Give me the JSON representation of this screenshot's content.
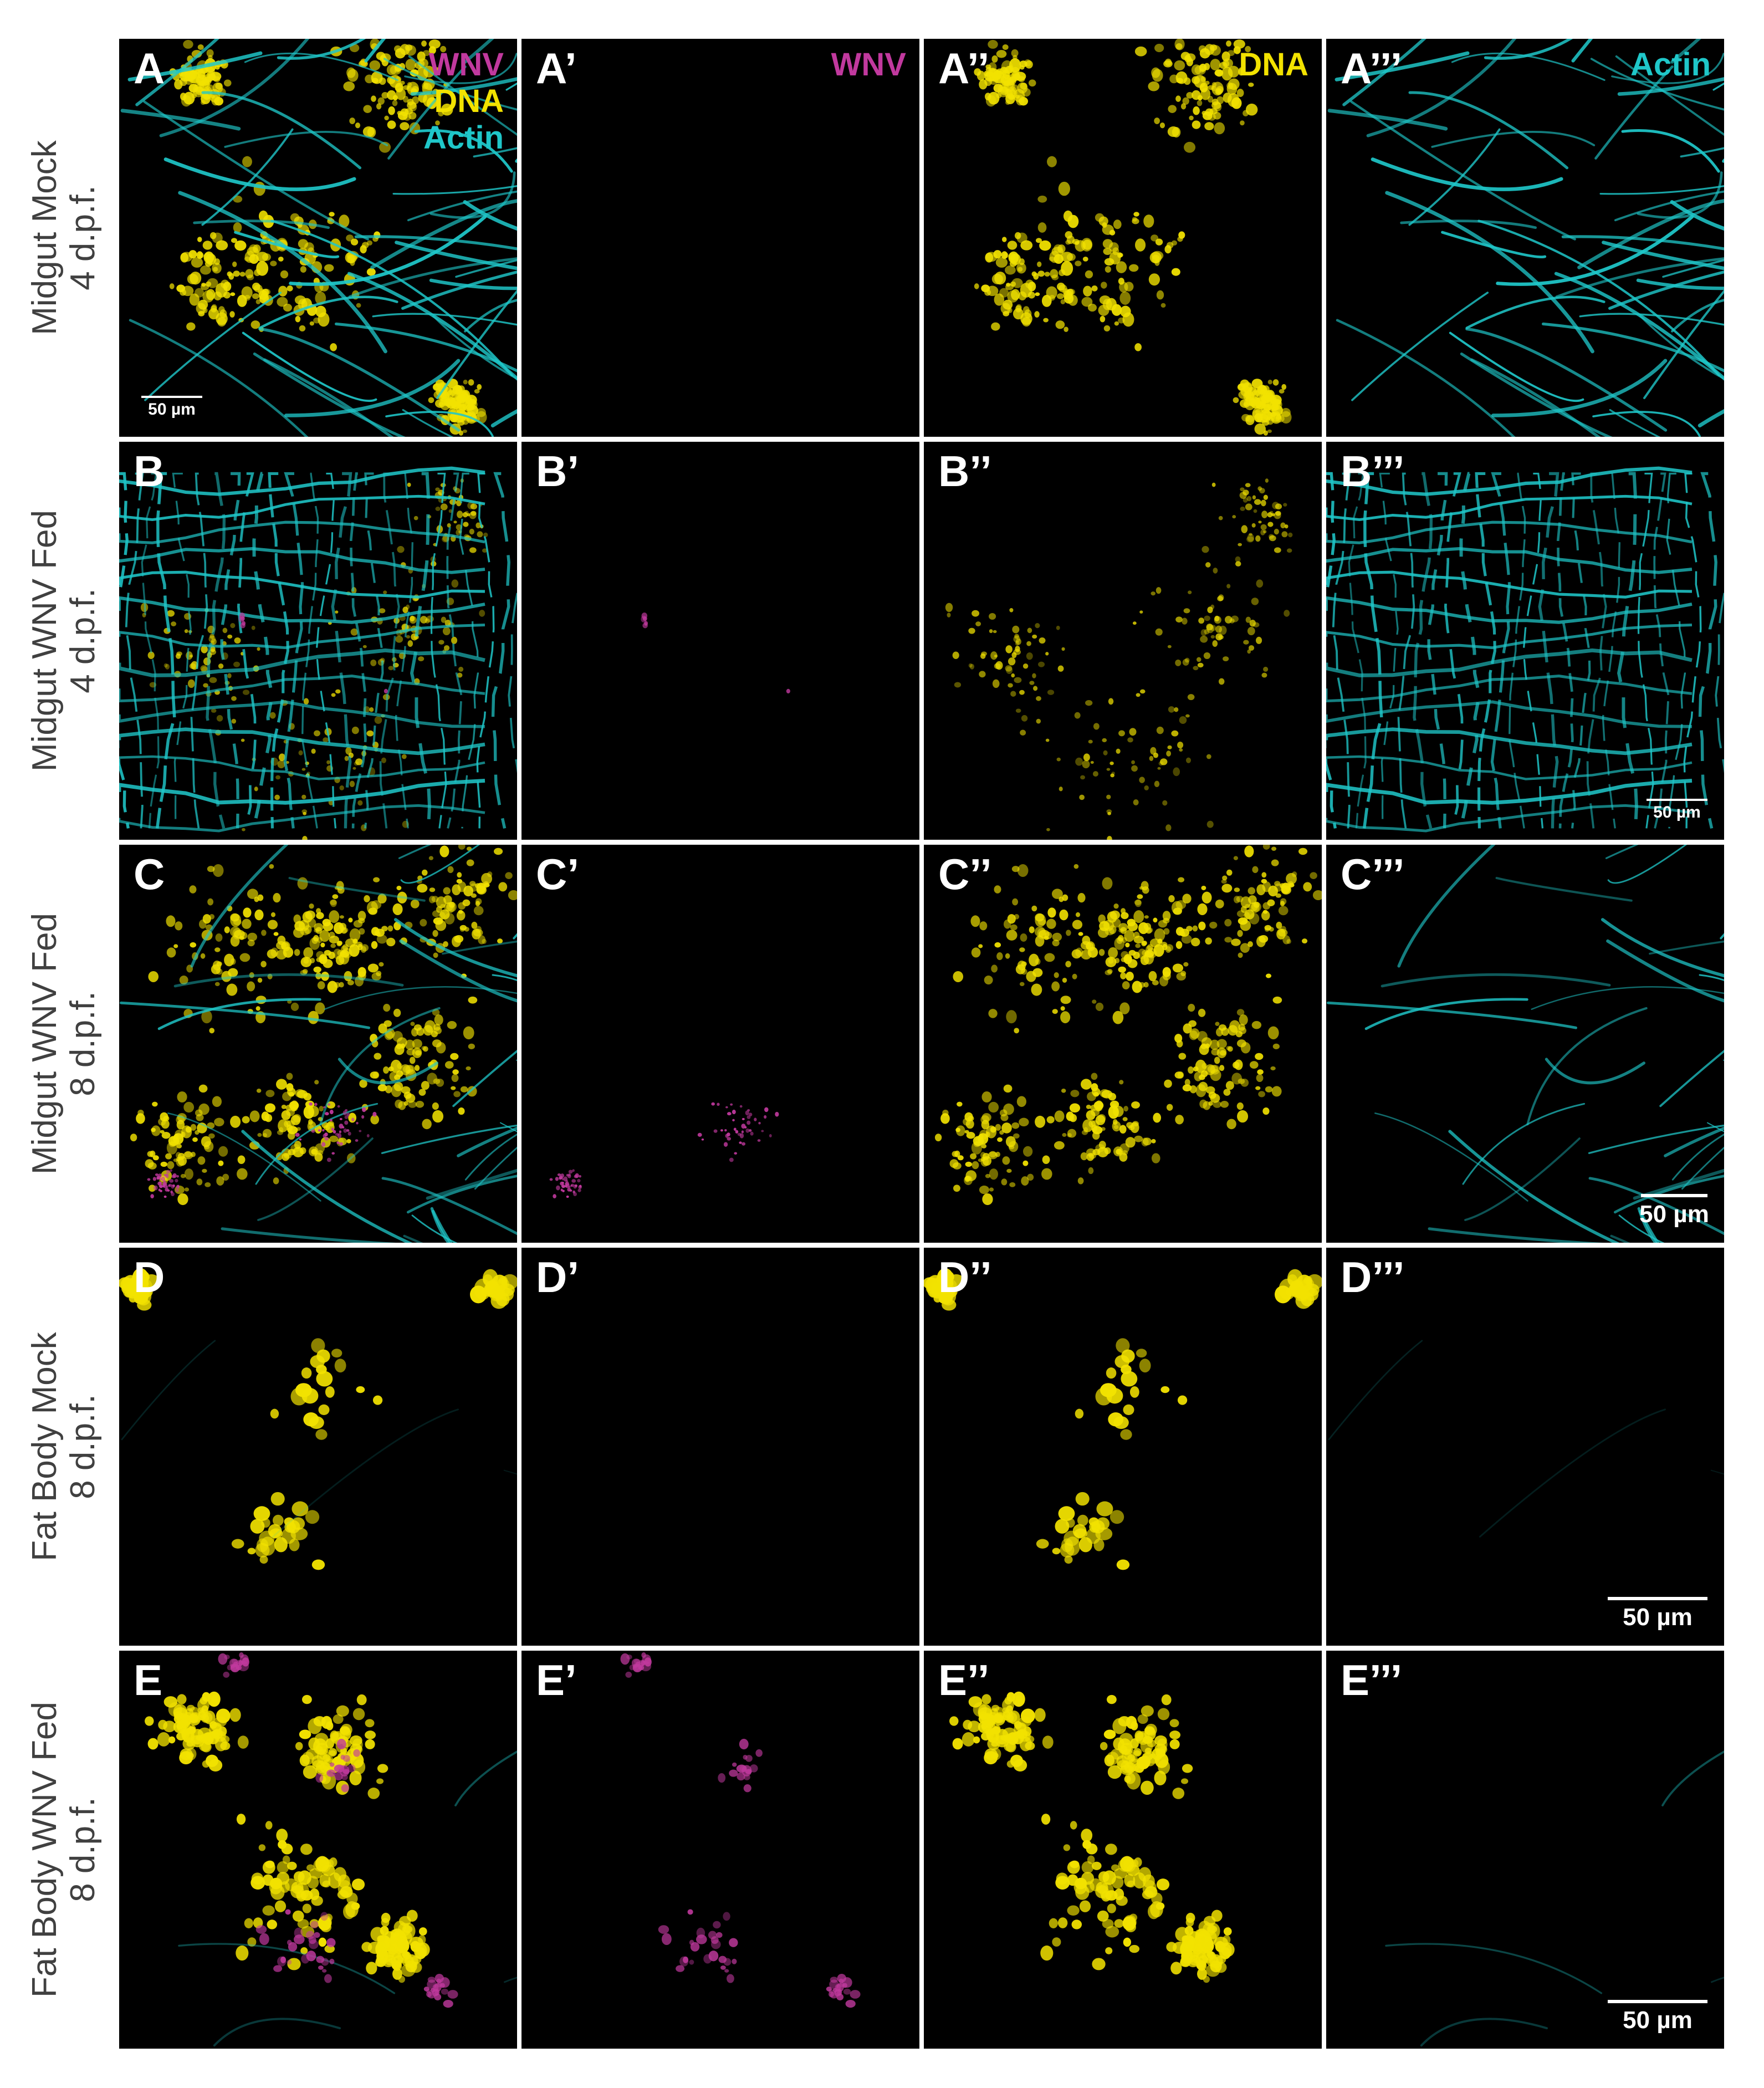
{
  "colors": {
    "wnv": "#c1399e",
    "dna": "#f2e200",
    "actin": "#1fc7c9",
    "background": "#000000",
    "divider": "#ffffff"
  },
  "rows": [
    {
      "label_line1": "Midgut Mock",
      "label_line2": "4 d.p.f.",
      "panels": [
        {
          "letter": "A",
          "legend": [
            "WNV",
            "DNA",
            "Actin"
          ],
          "channels": [
            "wnv",
            "dna",
            "actin"
          ],
          "tissue": "midgut-mock"
        },
        {
          "letter": "A’",
          "legend": [
            "WNV"
          ],
          "channels": [
            "wnv"
          ],
          "tissue": "midgut-mock"
        },
        {
          "letter": "A’’",
          "legend": [
            "DNA"
          ],
          "channels": [
            "dna"
          ],
          "tissue": "midgut-mock"
        },
        {
          "letter": "A’’’",
          "legend": [
            "Actin"
          ],
          "channels": [
            "actin"
          ],
          "tissue": "midgut-mock"
        }
      ],
      "scale_bar": {
        "text": "50 µm",
        "panel": 0
      }
    },
    {
      "label_line1": "Midgut WNV Fed",
      "label_line2": "4 d.p.f.",
      "panels": [
        {
          "letter": "B",
          "legend": [],
          "channels": [
            "wnv",
            "dna",
            "actin"
          ],
          "tissue": "midgut-wnv-4"
        },
        {
          "letter": "B’",
          "legend": [],
          "channels": [
            "wnv"
          ],
          "tissue": "midgut-wnv-4"
        },
        {
          "letter": "B’’",
          "legend": [],
          "channels": [
            "dna"
          ],
          "tissue": "midgut-wnv-4"
        },
        {
          "letter": "B’’’",
          "legend": [],
          "channels": [
            "actin"
          ],
          "tissue": "midgut-wnv-4"
        }
      ],
      "scale_bar": {
        "text": "50 µm",
        "panel": 3
      }
    },
    {
      "label_line1": "Midgut WNV Fed",
      "label_line2": "8 d.p.f.",
      "panels": [
        {
          "letter": "C",
          "legend": [],
          "channels": [
            "wnv",
            "dna",
            "actin"
          ],
          "tissue": "midgut-wnv-8"
        },
        {
          "letter": "C’",
          "legend": [],
          "channels": [
            "wnv"
          ],
          "tissue": "midgut-wnv-8"
        },
        {
          "letter": "C’’",
          "legend": [],
          "channels": [
            "dna"
          ],
          "tissue": "midgut-wnv-8"
        },
        {
          "letter": "C’’’",
          "legend": [],
          "channels": [
            "actin"
          ],
          "tissue": "midgut-wnv-8"
        }
      ],
      "scale_bar": {
        "text": "50 µm",
        "panel": 3
      }
    },
    {
      "label_line1": "Fat Body Mock",
      "label_line2": "8 d.p.f.",
      "panels": [
        {
          "letter": "D",
          "legend": [],
          "channels": [
            "wnv",
            "dna",
            "actin"
          ],
          "tissue": "fatbody-mock"
        },
        {
          "letter": "D’",
          "legend": [],
          "channels": [
            "wnv"
          ],
          "tissue": "fatbody-mock"
        },
        {
          "letter": "D’’",
          "legend": [],
          "channels": [
            "dna"
          ],
          "tissue": "fatbody-mock"
        },
        {
          "letter": "D’’’",
          "legend": [],
          "channels": [
            "actin"
          ],
          "tissue": "fatbody-mock"
        }
      ],
      "scale_bar": {
        "text": "50 µm",
        "panel": 3
      }
    },
    {
      "label_line1": "Fat Body WNV Fed",
      "label_line2": "8 d.p.f.",
      "panels": [
        {
          "letter": "E",
          "legend": [],
          "channels": [
            "wnv",
            "dna",
            "actin"
          ],
          "tissue": "fatbody-wnv"
        },
        {
          "letter": "E’",
          "legend": [],
          "channels": [
            "wnv"
          ],
          "tissue": "fatbody-wnv"
        },
        {
          "letter": "E’’",
          "legend": [],
          "channels": [
            "dna"
          ],
          "tissue": "fatbody-wnv"
        },
        {
          "letter": "E’’’",
          "legend": [],
          "channels": [
            "actin"
          ],
          "tissue": "fatbody-wnv"
        }
      ],
      "scale_bar": {
        "text": "50 µm",
        "panel": 3
      }
    }
  ]
}
